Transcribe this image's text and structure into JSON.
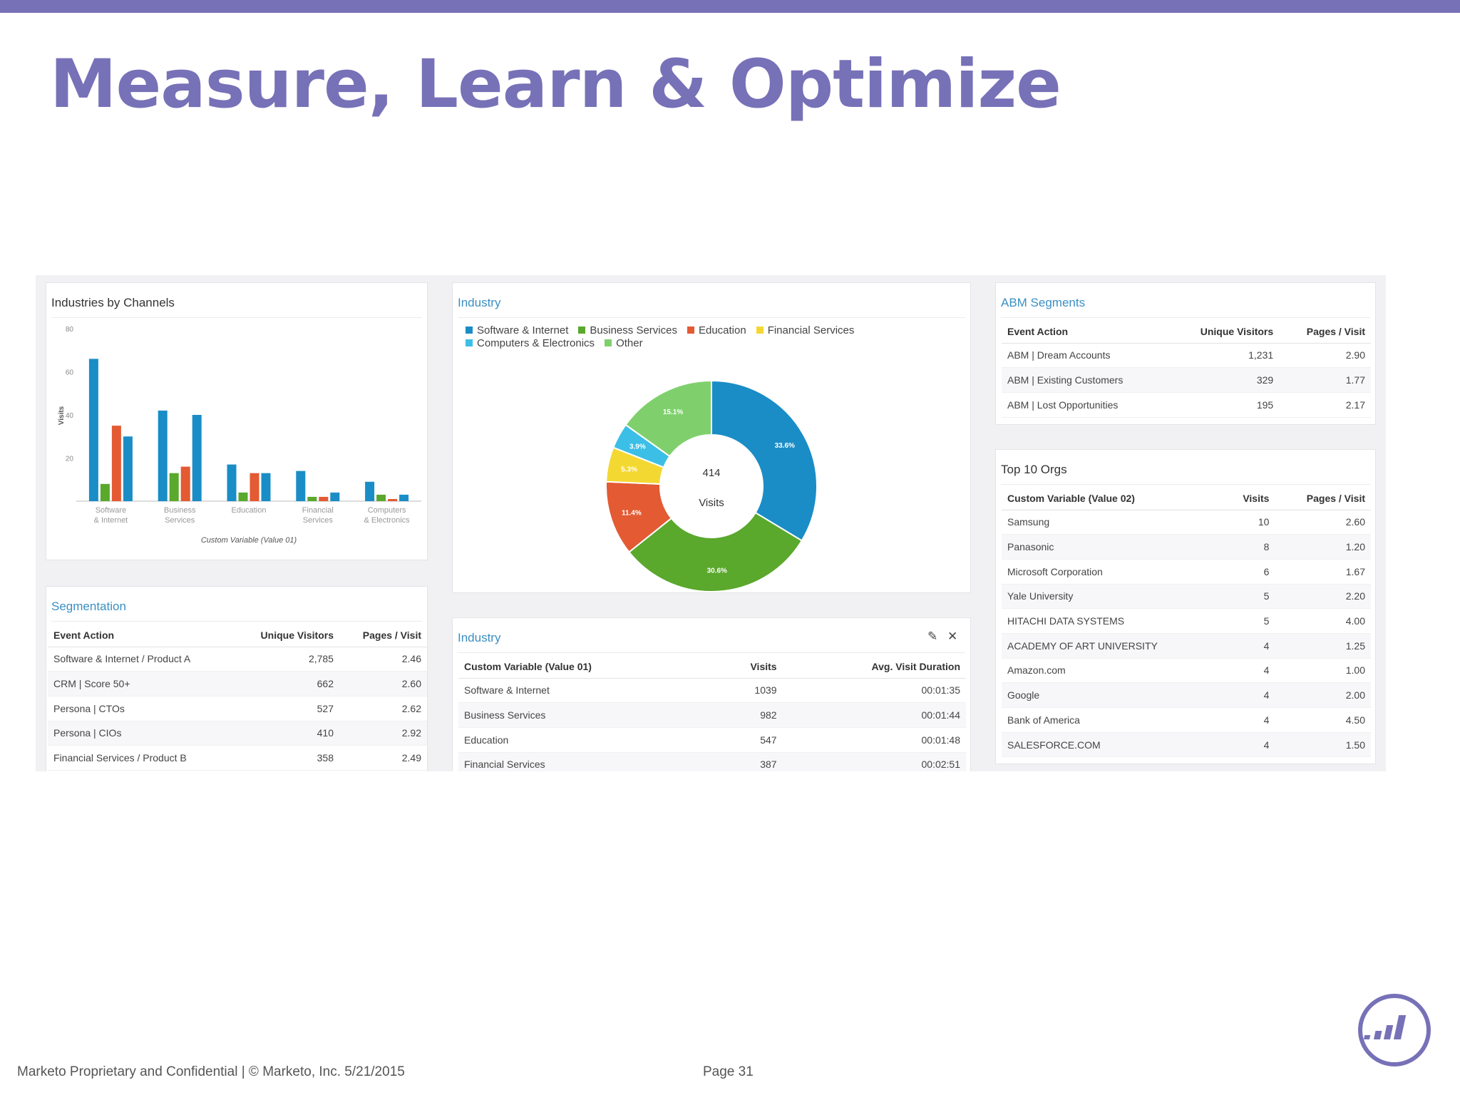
{
  "slide": {
    "title": "Measure, Learn & Optimize",
    "footer_left": "Marketo Proprietary and Confidential  |  © Marketo, Inc.  5/21/2015",
    "footer_page": "Page 31",
    "accent_color": "#7771b8"
  },
  "chart_data": [
    {
      "type": "bar",
      "title": "Industries by Channels",
      "xlabel": "Custom Variable (Value 01)",
      "ylabel": "Visits",
      "ylim": [
        0,
        80
      ],
      "yticks": [
        "80",
        "60",
        "40",
        "20"
      ],
      "categories": [
        "Software & Internet",
        "Business Services",
        "Education",
        "Financial Services",
        "Computers & Electronics"
      ],
      "series": [
        {
          "color": "#1a8dc6",
          "values": [
            66,
            42,
            17,
            14,
            9
          ]
        },
        {
          "color": "#5aa82c",
          "values": [
            8,
            13,
            4,
            2,
            3
          ]
        },
        {
          "color": "#e35a33",
          "values": [
            35,
            16,
            13,
            2,
            1
          ]
        },
        {
          "color": "#1a8dc6",
          "values": [
            30,
            40,
            13,
            4,
            3
          ]
        }
      ],
      "grid": false,
      "legend": "none"
    },
    {
      "type": "pie",
      "title": "Industry",
      "center_value": "414",
      "center_label": "Visits",
      "legend": "top",
      "slices": [
        {
          "label": "Software & Internet",
          "value": 33.6,
          "text": "33.6%",
          "color": "#1a8dc6"
        },
        {
          "label": "Business Services",
          "value": 30.6,
          "text": "30.6%",
          "color": "#5aa82c"
        },
        {
          "label": "Education",
          "value": 11.4,
          "text": "11.4%",
          "color": "#e35a33"
        },
        {
          "label": "Financial Services",
          "value": 5.3,
          "text": "5.3%",
          "color": "#f4d832"
        },
        {
          "label": "Computers & Electronics",
          "value": 3.9,
          "text": "3.9%",
          "color": "#3cbfe6"
        },
        {
          "label": "Other",
          "value": 15.1,
          "text": "15.1%",
          "color": "#7fd06d"
        }
      ]
    }
  ],
  "segmentation": {
    "title": "Segmentation",
    "headers": [
      "Event Action",
      "Unique Visitors",
      "Pages / Visit"
    ],
    "rows": [
      [
        "Software & Internet / Product A",
        "2,785",
        "2.46"
      ],
      [
        "CRM | Score 50+",
        "662",
        "2.60"
      ],
      [
        "Persona | CTOs",
        "527",
        "2.62"
      ],
      [
        "Persona | CIOs",
        "410",
        "2.92"
      ],
      [
        "Financial Services / Product B",
        "358",
        "2.49"
      ]
    ]
  },
  "industry_table": {
    "title": "Industry",
    "headers": [
      "Custom Variable (Value 01)",
      "Visits",
      "Avg. Visit Duration"
    ],
    "rows": [
      [
        "Software & Internet",
        "1039",
        "00:01:35"
      ],
      [
        "Business Services",
        "982",
        "00:01:44"
      ],
      [
        "Education",
        "547",
        "00:01:48"
      ],
      [
        "Financial Services",
        "387",
        "00:02:51"
      ]
    ]
  },
  "abm": {
    "title": "ABM Segments",
    "headers": [
      "Event Action",
      "Unique Visitors",
      "Pages / Visit"
    ],
    "rows": [
      [
        "ABM | Dream Accounts",
        "1,231",
        "2.90"
      ],
      [
        "ABM | Existing Customers",
        "329",
        "1.77"
      ],
      [
        "ABM | Lost Opportunities",
        "195",
        "2.17"
      ]
    ]
  },
  "top_orgs": {
    "title": "Top 10 Orgs",
    "headers": [
      "Custom Variable (Value 02)",
      "Visits",
      "Pages / Visit"
    ],
    "rows": [
      [
        "Samsung",
        "10",
        "2.60"
      ],
      [
        "Panasonic",
        "8",
        "1.20"
      ],
      [
        "Microsoft Corporation",
        "6",
        "1.67"
      ],
      [
        "Yale University",
        "5",
        "2.20"
      ],
      [
        "HITACHI DATA SYSTEMS",
        "5",
        "4.00"
      ],
      [
        "ACADEMY OF ART UNIVERSITY",
        "4",
        "1.25"
      ],
      [
        "Amazon.com",
        "4",
        "1.00"
      ],
      [
        "Google",
        "4",
        "2.00"
      ],
      [
        "Bank of America",
        "4",
        "4.50"
      ],
      [
        "SALESFORCE.COM",
        "4",
        "1.50"
      ]
    ]
  }
}
